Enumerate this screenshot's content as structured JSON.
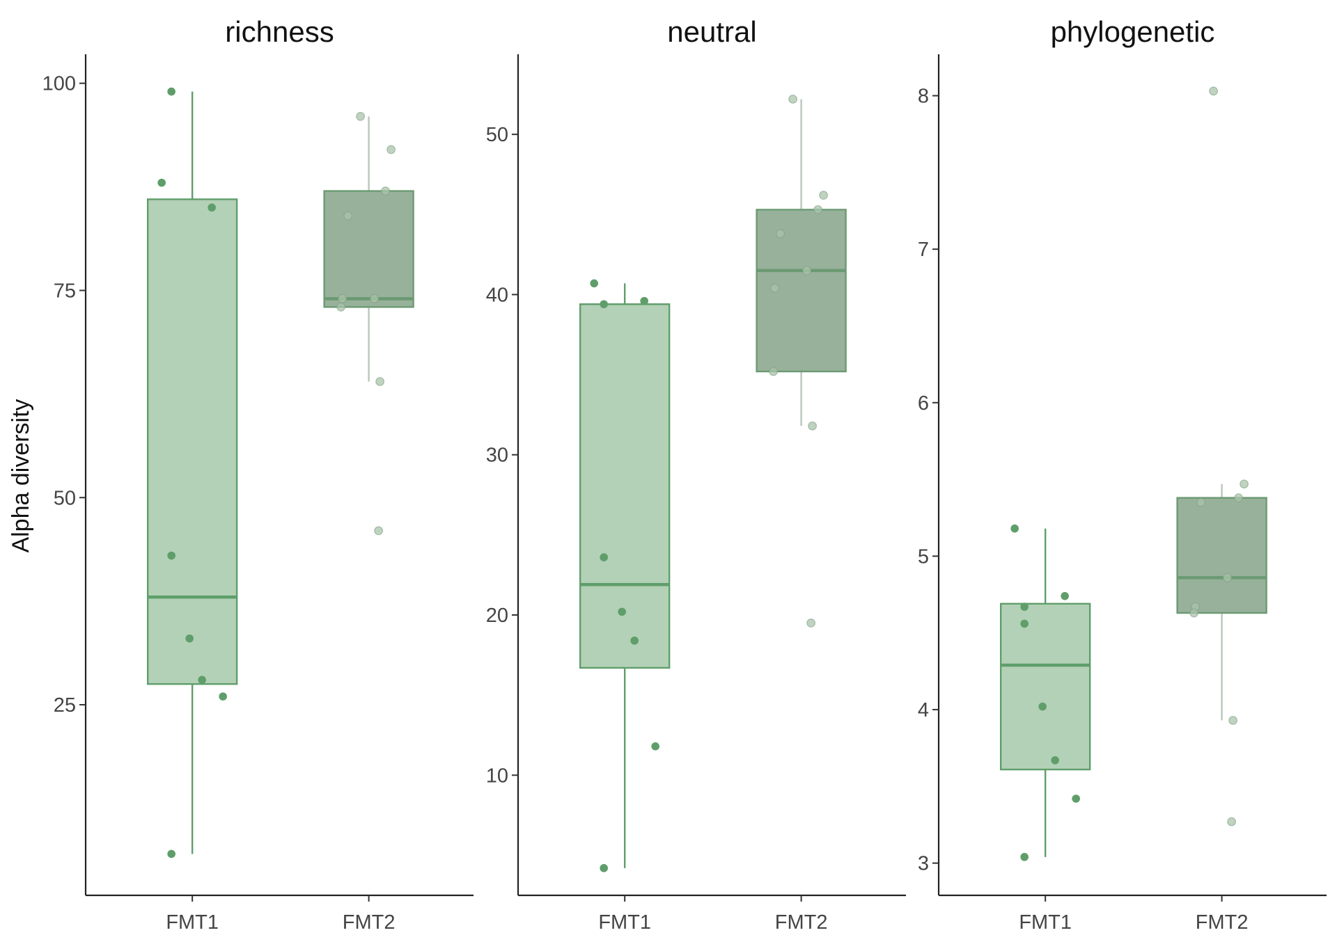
{
  "chart_data": {
    "type": "box",
    "ylabel": "Alpha diversity",
    "categories": [
      "FMT1",
      "FMT2"
    ],
    "colors": {
      "FMT1": {
        "fill": "#b3d1b7",
        "stroke": "#5f9e6a",
        "point": "#5f9e6a",
        "whisker": "#5f9e6a"
      },
      "FMT2": {
        "fill": "#98b19a",
        "stroke": "#6b9a72",
        "point": "#a9c4ab",
        "whisker": "#b9c8bb"
      }
    },
    "facets": [
      {
        "title": "richness",
        "yticks": [
          25,
          50,
          75,
          100
        ],
        "ylim": [
          2,
          103.5
        ],
        "groups": [
          {
            "name": "FMT1",
            "q1": 27.5,
            "median": 38,
            "q3": 86,
            "whisker_low": 7,
            "whisker_high": 99,
            "points": [
              88,
              85,
              99,
              43,
              33,
              28,
              26,
              7
            ]
          },
          {
            "name": "FMT2",
            "q1": 73,
            "median": 74,
            "q3": 87,
            "whisker_low": 64,
            "whisker_high": 96,
            "points": [
              96,
              92,
              87,
              84,
              74,
              74,
              73,
              64,
              46
            ]
          }
        ]
      },
      {
        "title": "neutral",
        "yticks": [
          10,
          20,
          30,
          40,
          50
        ],
        "ylim": [
          2.5,
          55
        ],
        "groups": [
          {
            "name": "FMT1",
            "q1": 16.7,
            "median": 21.9,
            "q3": 39.4,
            "whisker_low": 4.2,
            "whisker_high": 40.7,
            "points": [
              40.7,
              39.6,
              39.4,
              23.6,
              20.2,
              18.4,
              11.8,
              4.2
            ]
          },
          {
            "name": "FMT2",
            "q1": 35.2,
            "median": 41.5,
            "q3": 45.3,
            "whisker_low": 31.8,
            "whisker_high": 52.2,
            "points": [
              52.2,
              46.2,
              45.3,
              43.8,
              41.5,
              40.4,
              35.2,
              31.8,
              19.5
            ]
          }
        ]
      },
      {
        "title": "phylogenetic",
        "yticks": [
          3,
          4,
          5,
          6,
          7,
          8
        ],
        "ylim": [
          2.79,
          8.27
        ],
        "groups": [
          {
            "name": "FMT1",
            "q1": 3.61,
            "median": 4.29,
            "q3": 4.69,
            "whisker_low": 3.04,
            "whisker_high": 5.18,
            "points": [
              5.18,
              4.74,
              4.67,
              4.56,
              4.02,
              3.67,
              3.42,
              3.04
            ]
          },
          {
            "name": "FMT2",
            "q1": 4.63,
            "median": 4.86,
            "q3": 5.38,
            "whisker_low": 3.93,
            "whisker_high": 5.47,
            "points": [
              8.03,
              5.47,
              5.38,
              5.35,
              4.86,
              4.67,
              4.63,
              3.93,
              3.27
            ]
          }
        ]
      }
    ]
  }
}
